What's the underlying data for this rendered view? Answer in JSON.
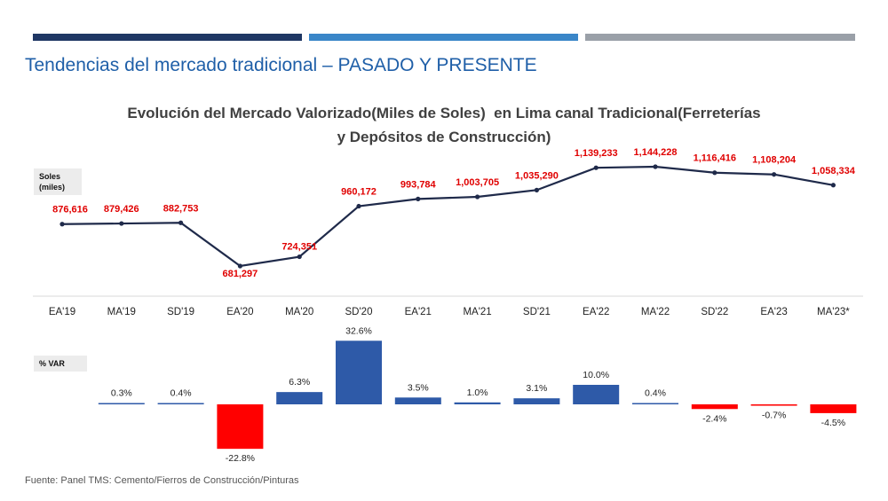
{
  "page_title": "Tendencias del mercado tradicional – PASADO Y PRESENTE",
  "colors": {
    "bar_dark": "#1f3764",
    "bar_mid": "#3a86c8",
    "bar_gray": "#9aa0a8",
    "title_blue": "#1f5fa8",
    "line": "#1f2a4a",
    "value_red": "#e00000",
    "positive_bar": "#2e5aa8",
    "negative_bar": "#ff0000"
  },
  "source": "Fuente: Panel TMS: Cemento/Fierros de Construcción/Pinturas",
  "chart_data": [
    {
      "type": "line",
      "title_line1": "Evolución del Mercado Valorizado(Miles de Soles)  en Lima canal Tradicional(Ferreterías",
      "title_line2": "y Depósitos de Construcción)",
      "ylabel": "Soles\n(miles)",
      "ylabel_line1": "Soles",
      "ylabel_line2": "(miles)",
      "categories": [
        "EA'19",
        "MA'19",
        "SD'19",
        "EA'20",
        "MA'20",
        "SD'20",
        "EA'21",
        "MA'21",
        "SD'21",
        "EA'22",
        "MA'22",
        "SD'22",
        "EA'23",
        "MA'23*"
      ],
      "values": [
        876616,
        879426,
        882753,
        681297,
        724351,
        960172,
        993784,
        1003705,
        1035290,
        1139233,
        1144228,
        1116416,
        1108204,
        1058334
      ],
      "labels": [
        "876,616",
        "879,426",
        "882,753",
        "681,297",
        "724,351",
        "960,172",
        "993,784",
        "1,003,705",
        "1,035,290",
        "1,139,233",
        "1,144,228",
        "1,116,416",
        "1,108,204",
        "1,058,334"
      ],
      "grid": false
    },
    {
      "type": "bar",
      "ylabel": "% VAR",
      "categories": [
        "EA'19",
        "MA'19",
        "SD'19",
        "EA'20",
        "MA'20",
        "SD'20",
        "EA'21",
        "MA'21",
        "SD'21",
        "EA'22",
        "MA'22",
        "SD'22",
        "EA'23",
        "MA'23*"
      ],
      "values": [
        null,
        0.3,
        0.4,
        -22.8,
        6.3,
        32.6,
        3.5,
        1.0,
        3.1,
        10.0,
        0.4,
        -2.4,
        -0.7,
        -4.5
      ],
      "labels": [
        "",
        "0.3%",
        "0.4%",
        "-22.8%",
        "6.3%",
        "32.6%",
        "3.5%",
        "1.0%",
        "3.1%",
        "10.0%",
        "0.4%",
        "-2.4%",
        "-0.7%",
        "-4.5%"
      ],
      "grid": false
    }
  ]
}
